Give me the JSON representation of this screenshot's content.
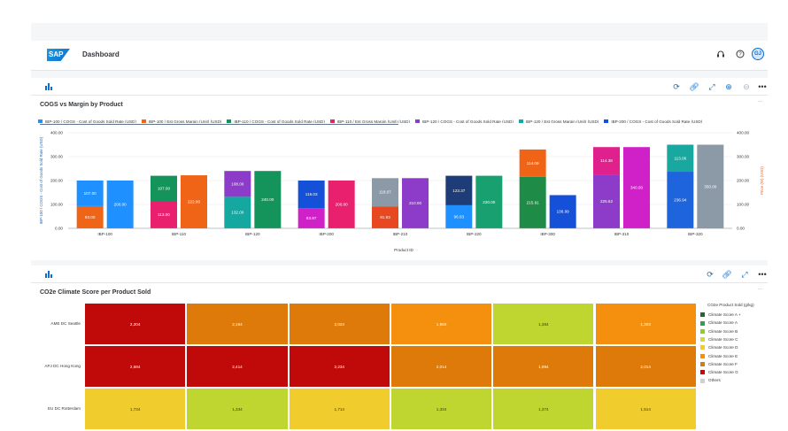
{
  "shell": {
    "title": "Dashboard",
    "logo_text": "SAP",
    "avatar_initials": "GJ",
    "icons": [
      "headset-icon",
      "help-icon"
    ]
  },
  "cogs_card": {
    "title": "COGS vs Margin by Product",
    "more_label": "···",
    "toolbar_icons": [
      "refresh-icon",
      "link-icon",
      "fullscreen-icon",
      "zoom-in-icon",
      "zoom-out-icon",
      "more-icon"
    ]
  },
  "co2_card": {
    "title": "CO2e Climate Score per Product Sold",
    "more_label": "···",
    "toolbar_icons": [
      "refresh-icon",
      "link-icon",
      "fullscreen-icon",
      "more-icon"
    ]
  },
  "colors": {
    "accent": "#0a6ed1",
    "ibp100_cogs": "#1e90ff",
    "ibp100_margin": "#f06418",
    "ibp110_cogs": "#14945a",
    "ibp110_margin": "#e8206e",
    "ibp120_cogs": "#8c3cc8",
    "ibp120_margin": "#14a8a0",
    "ibp200_cogs": "#1450d8",
    "ibp200_margin": "#d020c8",
    "ibp210_cogs": "#8c9aa8",
    "ibp210_margin": "#e84820",
    "ibp220_cogs": "#1e3c78",
    "ibp220_margin": "#18a070",
    "ibp300_cogs": "#1e8c46",
    "ibp300_margin": "#f06418",
    "ibp310_cogs": "#e0208c",
    "ibp310_margin": "#8c3cc8",
    "ibp320_cogs": "#1e64dc",
    "ibp320_margin": "#18a8a0"
  },
  "chart_data": [
    {
      "type": "bar",
      "title": "COGS vs Margin by Product",
      "xlabel": "Product ID",
      "ylabel": "IBP-100 / COGS - Cost of Goods Sold Rate (USD)",
      "ylabel_right": "Price (W) (USD)",
      "ylim": [
        0,
        400
      ],
      "yticks": [
        "0.00",
        "100.00",
        "200.00",
        "300.00",
        "400.00"
      ],
      "categories": [
        "IBP-100",
        "IBP-110",
        "IBP-120",
        "IBP-200",
        "IBP-210",
        "IBP-220",
        "IBP-300",
        "IBP-310",
        "IBP-320"
      ],
      "legend": [
        {
          "name": "IBP-100 / COGS - Cost of Goods Sold Rate (USD)",
          "color": "#1e90ff"
        },
        {
          "name": "IBP-100 / Est Gross Margin (Unit) (USD)",
          "color": "#f06418"
        },
        {
          "name": "IBP-110 / COGS - Cost of Goods Sold Rate (USD)",
          "color": "#14945a"
        },
        {
          "name": "IBP-110 / Est Gross Margin (Unit) (USD)",
          "color": "#e8206e"
        },
        {
          "name": "IBP-120 / COGS - Cost of Goods Sold Rate (USD)",
          "color": "#8c3cc8"
        },
        {
          "name": "IBP-120 / Est Gross Margin (Unit) (USD)",
          "color": "#14a8a0"
        },
        {
          "name": "IBP-200 / COGS - Cost of Goods Sold Rate (USD)",
          "color": "#1450d8"
        }
      ],
      "groups": [
        {
          "category": "IBP-100",
          "stack": [
            {
              "value": 93.0,
              "label": "93.00",
              "color": "#f06418"
            },
            {
              "value": 107.0,
              "label": "107.00",
              "color": "#1e90ff"
            }
          ],
          "side": {
            "value": 200.0,
            "label": "200.00",
            "color": "#1e90ff"
          }
        },
        {
          "category": "IBP-110",
          "stack": [
            {
              "value": 113.0,
              "label": "113.00",
              "color": "#e8206e"
            },
            {
              "value": 107.0,
              "label": "107.00",
              "color": "#14945a"
            }
          ],
          "side": {
            "value": 222.0,
            "label": "222.00",
            "color": "#f06418"
          }
        },
        {
          "category": "IBP-120",
          "stack": [
            {
              "value": 132.0,
              "label": "132.00",
              "color": "#14a8a0"
            },
            {
              "value": 108.0,
              "label": "108.00",
              "color": "#8c3cc8"
            }
          ],
          "side": {
            "value": 240.0,
            "label": "240.00",
            "color": "#14945a"
          }
        },
        {
          "category": "IBP-200",
          "stack": [
            {
              "value": 83.97,
              "label": "83.97",
              "color": "#d020c8"
            },
            {
              "value": 116.03,
              "label": "116.03",
              "color": "#1450d8"
            }
          ],
          "side": {
            "value": 200.0,
            "label": "200.00",
            "color": "#e8206e"
          }
        },
        {
          "category": "IBP-210",
          "stack": [
            {
              "value": 91.93,
              "label": "91.93",
              "color": "#e84820"
            },
            {
              "value": 118.07,
              "label": "118.07",
              "color": "#8c9aa8"
            }
          ],
          "side": {
            "value": 210.0,
            "label": "210.00",
            "color": "#8c3cc8"
          }
        },
        {
          "category": "IBP-220",
          "stack": [
            {
              "value": 96.63,
              "label": "96.63",
              "color": "#1e90ff"
            },
            {
              "value": 123.37,
              "label": "123.37",
              "color": "#1e3c78"
            }
          ],
          "side": {
            "value": 220.0,
            "label": "220.00",
            "color": "#18a070"
          }
        },
        {
          "category": "IBP-300",
          "stack": [
            {
              "value": 215.91,
              "label": "215.91",
              "color": "#1e8c46"
            },
            {
              "value": 114.09,
              "label": "114.09",
              "color": "#f06418"
            }
          ],
          "side": {
            "value": 138.99,
            "label": "138.99",
            "color": "#1450d8"
          }
        },
        {
          "category": "IBP-310",
          "stack": [
            {
              "value": 225.62,
              "label": "225.62",
              "color": "#8c3cc8"
            },
            {
              "value": 114.38,
              "label": "114.38",
              "color": "#e0208c"
            }
          ],
          "side": {
            "value": 340.0,
            "label": "340.00",
            "color": "#d020c8"
          }
        },
        {
          "category": "IBP-320",
          "stack": [
            {
              "value": 236.94,
              "label": "236.94",
              "color": "#1e64dc"
            },
            {
              "value": 113.06,
              "label": "113.06",
              "color": "#18a8a0"
            }
          ],
          "side": {
            "value": 350.0,
            "label": "350.00",
            "color": "#8c9aa8"
          }
        }
      ]
    },
    {
      "type": "heatmap",
      "title": "CO2e Climate Score per Product Sold",
      "legend_title": "CO2e Product Sold (g/kg)",
      "rows": [
        "AME DC Seattle",
        "APJ DC Hong Kong",
        "EU DC Rotterdam"
      ],
      "columns": 6,
      "values": [
        [
          2204,
          2164,
          2024,
          1960,
          1384,
          1303
        ],
        [
          2584,
          2414,
          2234,
          2014,
          1994,
          2014
        ],
        [
          1734,
          1334,
          1714,
          1334,
          1374,
          1514
        ]
      ],
      "labels": [
        [
          "2,204",
          "2,164",
          "2,024",
          "1,960",
          "1,384",
          "1,303"
        ],
        [
          "2,584",
          "2,414",
          "2,234",
          "2,014",
          "1,994",
          "2,014"
        ],
        [
          "1,734",
          "1,334",
          "1,714",
          "1,334",
          "1,374",
          "1,514"
        ]
      ],
      "cell_colors": [
        [
          "#c00a0a",
          "#dd7a0a",
          "#dd7a0a",
          "#f4900e",
          "#bfd630",
          "#f4900e"
        ],
        [
          "#c00a0a",
          "#c00a0a",
          "#c00a0a",
          "#dd7a0a",
          "#dd7a0a",
          "#dd7a0a"
        ],
        [
          "#f0cc2c",
          "#bfd630",
          "#f0cc2c",
          "#bfd630",
          "#bfd630",
          "#f0cc2c"
        ]
      ],
      "legend": [
        {
          "name": "Climate Score A +",
          "color": "#1f6b2a"
        },
        {
          "name": "Climate Score A",
          "color": "#2ea24a"
        },
        {
          "name": "Climate Score B",
          "color": "#92c83c"
        },
        {
          "name": "Climate Score C",
          "color": "#d6dc32"
        },
        {
          "name": "Climate Score D",
          "color": "#f0cc2c"
        },
        {
          "name": "Climate Score E",
          "color": "#f4900e"
        },
        {
          "name": "Climate Score F",
          "color": "#dd7a0a"
        },
        {
          "name": "Climate Score G",
          "color": "#c00a0a"
        },
        {
          "name": "Others",
          "color": "#d0d0d0"
        }
      ]
    }
  ]
}
